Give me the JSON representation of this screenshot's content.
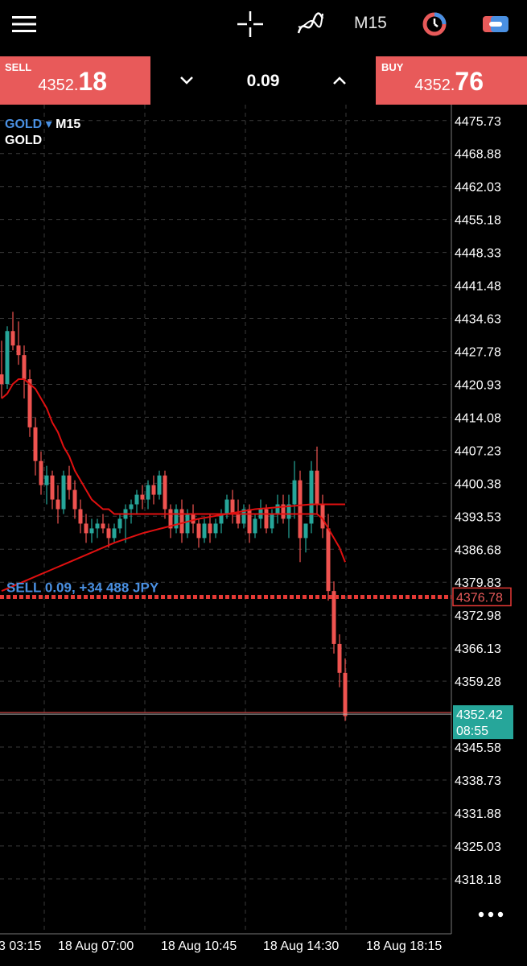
{
  "toolbar": {
    "menu_icon": "hamburger-icon",
    "crosshair_icon": "crosshair-icon",
    "indicators_icon": "indicators-icon",
    "timeframe": "M15",
    "clock_icon": "timer-icon",
    "trade_icon": "trade-icon"
  },
  "quote": {
    "sell_label": "SELL",
    "sell_price_small": "4352.",
    "sell_price_big": "18",
    "volume": "0.09",
    "buy_label": "BUY",
    "buy_price_small": "4352.",
    "buy_price_big": "76"
  },
  "chart": {
    "symbol": "GOLD",
    "timeframe": "M15",
    "description": "GOLD",
    "position_label": "SELL 0.09, +34 488 JPY",
    "position_price": "4376.78",
    "current_price": "4352.42",
    "countdown": "08:55",
    "colors": {
      "bull": "#26a69a",
      "bear": "#ef5350",
      "ma": "#e01010",
      "position_line": "#e53935",
      "current_tag": "#26a69a",
      "link": "#4a90e2"
    }
  },
  "chart_data": {
    "type": "candlestick",
    "symbol": "GOLD",
    "timeframe": "M15",
    "y_ticks": [
      "4475.73",
      "4468.88",
      "4462.03",
      "4455.18",
      "4448.33",
      "4441.48",
      "4434.63",
      "4427.78",
      "4420.93",
      "4414.08",
      "4407.23",
      "4400.38",
      "4393.53",
      "4386.68",
      "4379.83",
      "4372.98",
      "4366.13",
      "4359.28",
      "4345.58",
      "4338.73",
      "4331.88",
      "4325.03",
      "4318.18"
    ],
    "x_ticks": [
      "3 03:15",
      "18 Aug 07:00",
      "18 Aug 10:45",
      "18 Aug 14:30",
      "18 Aug 18:15"
    ],
    "ylim": [
      4311.8,
      4477.7
    ],
    "grid": true,
    "candles": [
      [
        4423,
        4430,
        4418,
        4421
      ],
      [
        4421,
        4433,
        4420,
        4432
      ],
      [
        4432,
        4436,
        4428,
        4429
      ],
      [
        4429,
        4434,
        4425,
        4427
      ],
      [
        4427,
        4429,
        4418,
        4422
      ],
      [
        4422,
        4424,
        4410,
        4412
      ],
      [
        4412,
        4414,
        4402,
        4405
      ],
      [
        4405,
        4407,
        4398,
        4400
      ],
      [
        4400,
        4404,
        4396,
        4402
      ],
      [
        4402,
        4403,
        4395,
        4397
      ],
      [
        4397,
        4400,
        4392,
        4395
      ],
      [
        4395,
        4403,
        4394,
        4402
      ],
      [
        4402,
        4404,
        4397,
        4399
      ],
      [
        4399,
        4401,
        4393,
        4395
      ],
      [
        4395,
        4397,
        4390,
        4392
      ],
      [
        4392,
        4394,
        4388,
        4390
      ],
      [
        4390,
        4393,
        4388,
        4391
      ],
      [
        4391,
        4393,
        4389,
        4392
      ],
      [
        4392,
        4394,
        4390,
        4391
      ],
      [
        4391,
        4392,
        4387,
        4389
      ],
      [
        4389,
        4392,
        4388,
        4391
      ],
      [
        4391,
        4394,
        4390,
        4393
      ],
      [
        4393,
        4396,
        4388,
        4395
      ],
      [
        4395,
        4397,
        4392,
        4396
      ],
      [
        4396,
        4399,
        4394,
        4398
      ],
      [
        4398,
        4400,
        4395,
        4397
      ],
      [
        4397,
        4401,
        4395,
        4400
      ],
      [
        4400,
        4402,
        4396,
        4398
      ],
      [
        4398,
        4403,
        4397,
        4402
      ],
      [
        4402,
        4403,
        4393,
        4395
      ],
      [
        4395,
        4396,
        4389,
        4391
      ],
      [
        4391,
        4396,
        4390,
        4395
      ],
      [
        4395,
        4397,
        4388,
        4390
      ],
      [
        4390,
        4395,
        4389,
        4394
      ],
      [
        4394,
        4396,
        4390,
        4392
      ],
      [
        4392,
        4393,
        4387,
        4389
      ],
      [
        4389,
        4393,
        4388,
        4392
      ],
      [
        4392,
        4394,
        4388,
        4390
      ],
      [
        4390,
        4393,
        4389,
        4392
      ],
      [
        4392,
        4395,
        4390,
        4394
      ],
      [
        4394,
        4398,
        4393,
        4397
      ],
      [
        4397,
        4399,
        4392,
        4394
      ],
      [
        4394,
        4397,
        4391,
        4392
      ],
      [
        4392,
        4396,
        4391,
        4395
      ],
      [
        4395,
        4396,
        4388,
        4390
      ],
      [
        4390,
        4394,
        4389,
        4393
      ],
      [
        4393,
        4397,
        4391,
        4395
      ],
      [
        4395,
        4396,
        4390,
        4391
      ],
      [
        4391,
        4395,
        4390,
        4394
      ],
      [
        4394,
        4398,
        4392,
        4396
      ],
      [
        4396,
        4398,
        4392,
        4393
      ],
      [
        4393,
        4398,
        4389,
        4396
      ],
      [
        4396,
        4405,
        4393,
        4401
      ],
      [
        4401,
        4403,
        4384,
        4389
      ],
      [
        4389,
        4392,
        4386,
        4392
      ],
      [
        4392,
        4405,
        4390,
        4403
      ],
      [
        4403,
        4408,
        4394,
        4396
      ],
      [
        4396,
        4398,
        4389,
        4391
      ],
      [
        4391,
        4394,
        4376,
        4378
      ],
      [
        4378,
        4380,
        4365,
        4367
      ],
      [
        4367,
        4369,
        4358,
        4361
      ],
      [
        4361,
        4364,
        4351,
        4352
      ]
    ],
    "ma_fast_values": [
      4418,
      4419,
      4421,
      4422,
      4422,
      4421,
      4420,
      4418,
      4416,
      4413,
      4411,
      4408,
      4406,
      4403,
      4401,
      4399,
      4397,
      4396,
      4395,
      4395,
      4394,
      4394,
      4394,
      4394,
      4394,
      4394,
      4394,
      4394,
      4394,
      4394,
      4394,
      4394,
      4394,
      4394,
      4394,
      4394,
      4394,
      4394,
      4394,
      4394,
      4394,
      4394,
      4394,
      4394,
      4394,
      4394,
      4394,
      4394,
      4394,
      4394,
      4394,
      4394,
      4394,
      4394,
      4394,
      4394,
      4394,
      4393,
      4391,
      4389,
      4387,
      4384
    ],
    "ma_slow_values": [
      4378,
      4378.5,
      4379,
      4379.5,
      4380,
      4380.5,
      4381,
      4381.5,
      4382,
      4382.5,
      4383,
      4383.5,
      4384,
      4384.5,
      4385,
      4385.5,
      4386,
      4386.5,
      4387,
      4387.5,
      4388,
      4388.4,
      4388.8,
      4389.2,
      4389.6,
      4390,
      4390.3,
      4390.6,
      4390.9,
      4391.2,
      4391.5,
      4391.8,
      4392.1,
      4392.4,
      4392.7,
      4393,
      4393.2,
      4393.4,
      4393.6,
      4393.8,
      4394,
      4394.2,
      4394.4,
      4394.6,
      4394.8,
      4395,
      4395.1,
      4395.2,
      4395.3,
      4395.4,
      4395.5,
      4395.6,
      4395.7,
      4395.8,
      4395.9,
      4396,
      4396,
      4396,
      4396,
      4396,
      4396,
      4396
    ]
  }
}
